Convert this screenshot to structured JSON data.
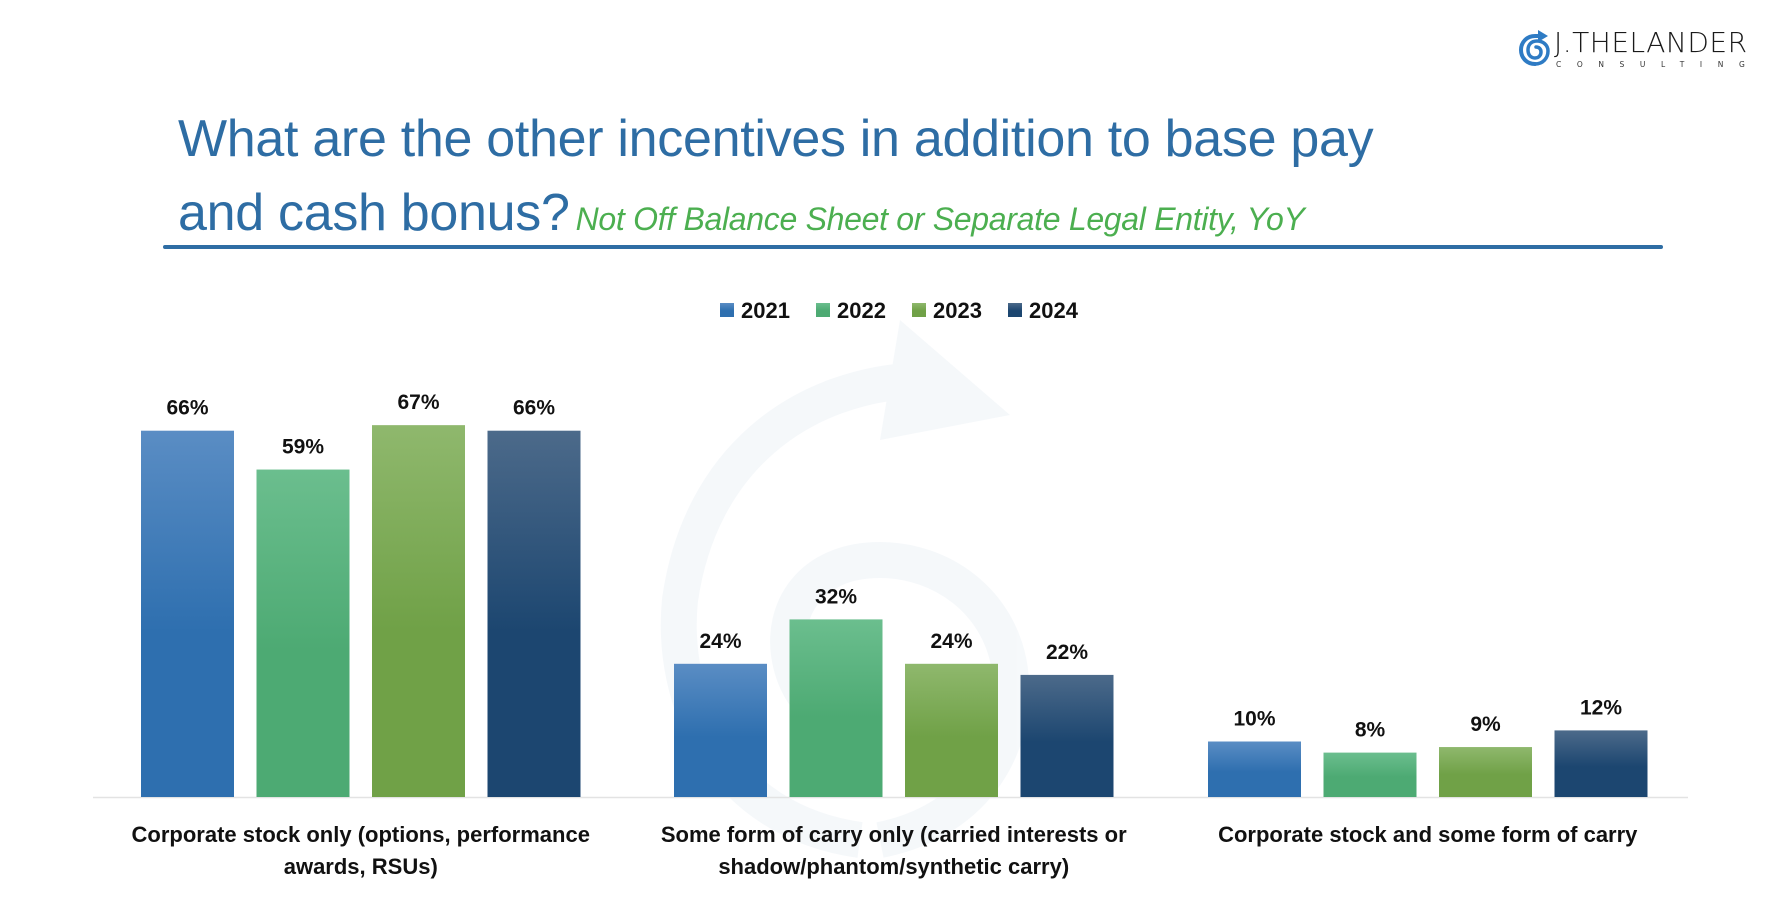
{
  "logo": {
    "name": "J.THELANDER",
    "tagline": "CONSULTING",
    "icon": "spiral-arrow-icon",
    "color": "#2E7BC4"
  },
  "header": {
    "title_line1": "What are the other incentives in addition to base pay",
    "title_line2": "and cash bonus?",
    "subtitle": "Not Off Balance Sheet or Separate Legal Entity, YoY",
    "title_color": "#2E6DA4",
    "subtitle_color": "#4CAF50"
  },
  "chart_data": {
    "type": "bar",
    "title": "What are the other incentives in addition to base pay and cash bonus?",
    "subtitle": "Not Off Balance Sheet or Separate Legal Entity, YoY",
    "xlabel": "",
    "ylabel": "",
    "ylim": [
      0,
      70
    ],
    "grid": false,
    "legend_position": "top-center",
    "value_format": "percent",
    "categories": [
      [
        "Corporate stock only (options, performance",
        "awards, RSUs)"
      ],
      [
        "Some form of carry only (carried interests or",
        "shadow/phantom/synthetic carry)"
      ],
      [
        "Corporate stock and some form of carry"
      ]
    ],
    "series": [
      {
        "name": "2021",
        "color_top": "#5A8DC4",
        "color_bottom": "#2E6FAF",
        "values": [
          66,
          24,
          10
        ],
        "labels": [
          "66%",
          "24%",
          "10%"
        ]
      },
      {
        "name": "2022",
        "color_top": "#6BBE8E",
        "color_bottom": "#4DAA73",
        "values": [
          59,
          32,
          8
        ],
        "labels": [
          "59%",
          "32%",
          "8%"
        ]
      },
      {
        "name": "2023",
        "color_top": "#8FB86D",
        "color_bottom": "#70A147",
        "values": [
          67,
          24,
          9
        ],
        "labels": [
          "67%",
          "24%",
          "9%"
        ]
      },
      {
        "name": "2024",
        "color_top": "#4C6A8A",
        "color_bottom": "#1C4670",
        "values": [
          66,
          22,
          12
        ],
        "labels": [
          "66%",
          "22%",
          "12%"
        ]
      }
    ]
  }
}
